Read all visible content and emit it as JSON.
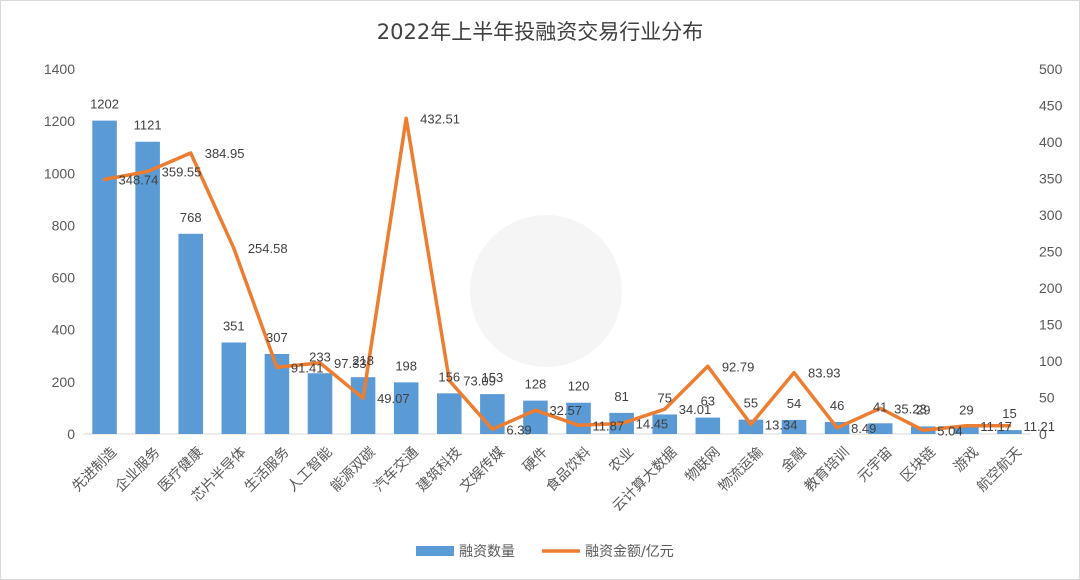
{
  "chart_data": {
    "type": "bar",
    "title": "2022年上半年投融资交易行业分布",
    "categories": [
      "先进制造",
      "企业服务",
      "医疗健康",
      "芯片半导体",
      "生活服务",
      "人工智能",
      "能源双碳",
      "汽车交通",
      "建筑科技",
      "文娱传媒",
      "硬件",
      "食品饮料",
      "农业",
      "云计算大数据",
      "物联网",
      "物流运输",
      "金融",
      "教育培训",
      "元宇宙",
      "区块链",
      "游戏",
      "航空航天"
    ],
    "series": [
      {
        "name": "融资数量",
        "type": "bar",
        "axis": "left",
        "color": "#5b9bd5",
        "values": [
          1202,
          1121,
          768,
          351,
          307,
          233,
          218,
          198,
          156,
          153,
          128,
          120,
          81,
          75,
          63,
          55,
          54,
          46,
          41,
          29,
          29,
          15
        ],
        "labels": [
          "1202",
          "1121",
          "768",
          "351",
          "307",
          "233",
          "218",
          "198",
          "156",
          "153",
          "128",
          "120",
          "81",
          "75",
          "63",
          "55",
          "54",
          "46",
          "41",
          "29",
          "29",
          "15"
        ]
      },
      {
        "name": "融资金额/亿元",
        "type": "line",
        "axis": "right",
        "color": "#ed7d31",
        "values": [
          348.74,
          359.55,
          384.95,
          254.58,
          91.41,
          97.33,
          49.07,
          432.51,
          73.09,
          6.39,
          32.57,
          11.87,
          14.45,
          34.01,
          92.79,
          13.34,
          83.93,
          8.49,
          35.23,
          5.04,
          11.17,
          11.21
        ],
        "labels": [
          "348.74",
          "359.55",
          "384.95",
          "254.58",
          "91.41",
          "97.33",
          "49.07",
          "432.51",
          "73.09",
          "6.39",
          "32.57",
          "11.87",
          "14.45",
          "34.01",
          "92.79",
          "13.34",
          "83.93",
          "8.49",
          "35.23",
          "5.04",
          "11.17",
          "11.21"
        ]
      }
    ],
    "y_left": {
      "min": 0,
      "max": 1400,
      "ticks": [
        0,
        200,
        400,
        600,
        800,
        1000,
        1200,
        1400
      ]
    },
    "y_right": {
      "min": 0,
      "max": 500,
      "ticks": [
        0,
        50,
        100,
        150,
        200,
        250,
        300,
        350,
        400,
        450,
        500
      ]
    },
    "grid": false,
    "legend_position": "bottom",
    "background": "#ffffff"
  }
}
